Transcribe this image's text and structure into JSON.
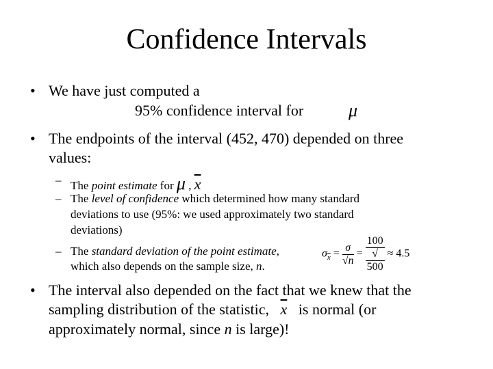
{
  "title": "Confidence Intervals",
  "bullets": [
    {
      "line1": "We have just computed a",
      "line2": "95% confidence interval for",
      "symbol": "μ"
    },
    {
      "line1": "The endpoints of the interval (452, 470) depended on three",
      "line2": "values:"
    }
  ],
  "sub_bullets": [
    {
      "pre": "The ",
      "em": "point estimate",
      "post": " for ",
      "mu": "μ",
      "sep": " ,",
      "x": "x"
    },
    {
      "pre": "The ",
      "em": "level of confidence",
      "post": " which determined how many standard",
      "line2": "deviations to use (95%: we used approximately two standard",
      "line3": "deviations)"
    },
    {
      "pre": "The ",
      "em": "standard deviation of the point estimate",
      "post": ",",
      "line2_pre": "which also depends on the sample size, ",
      "line2_var": "n",
      "line2_post": "."
    }
  ],
  "formula": {
    "lhs": "σ",
    "lhs_sub": "x",
    "num1": "σ",
    "den1": "n",
    "num2": "100",
    "den2": "500",
    "approx": "≈ 4.5",
    "eq": "="
  },
  "last_bullet": {
    "line1": "The interval also depended on the fact that we knew that the",
    "line2_pre": "sampling distribution of the statistic,",
    "line2_x": "x",
    "line2_post": "is normal (or",
    "line3_pre": "approximately normal, since ",
    "line3_var": "n",
    "line3_post": " is large)!"
  },
  "bullet_glyph": "•",
  "dash_glyph": "–"
}
